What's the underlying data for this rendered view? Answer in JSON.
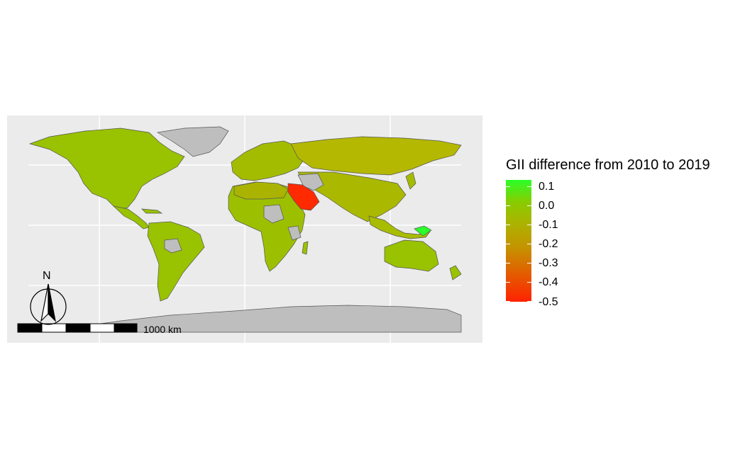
{
  "legend": {
    "title": "GII difference from 2010 to 2019",
    "labels": [
      "0.1",
      "0.0",
      "-0.1",
      "-0.2",
      "-0.3",
      "-0.4",
      "-0.5"
    ],
    "colors": {
      "high": "#2aff2a",
      "zero": "#88cc00",
      "low": "#ff2200"
    }
  },
  "map": {
    "panel_background": "#ebebeb",
    "no_data_color": "#bebebe",
    "scale_bar_label": "1000 km",
    "north_label": "N",
    "highlighted_regions": {
      "largest_decrease": "Saudi Arabia (red, approx -0.5)",
      "increase": "Papua New Guinea (green, approx 0.1)"
    }
  }
}
